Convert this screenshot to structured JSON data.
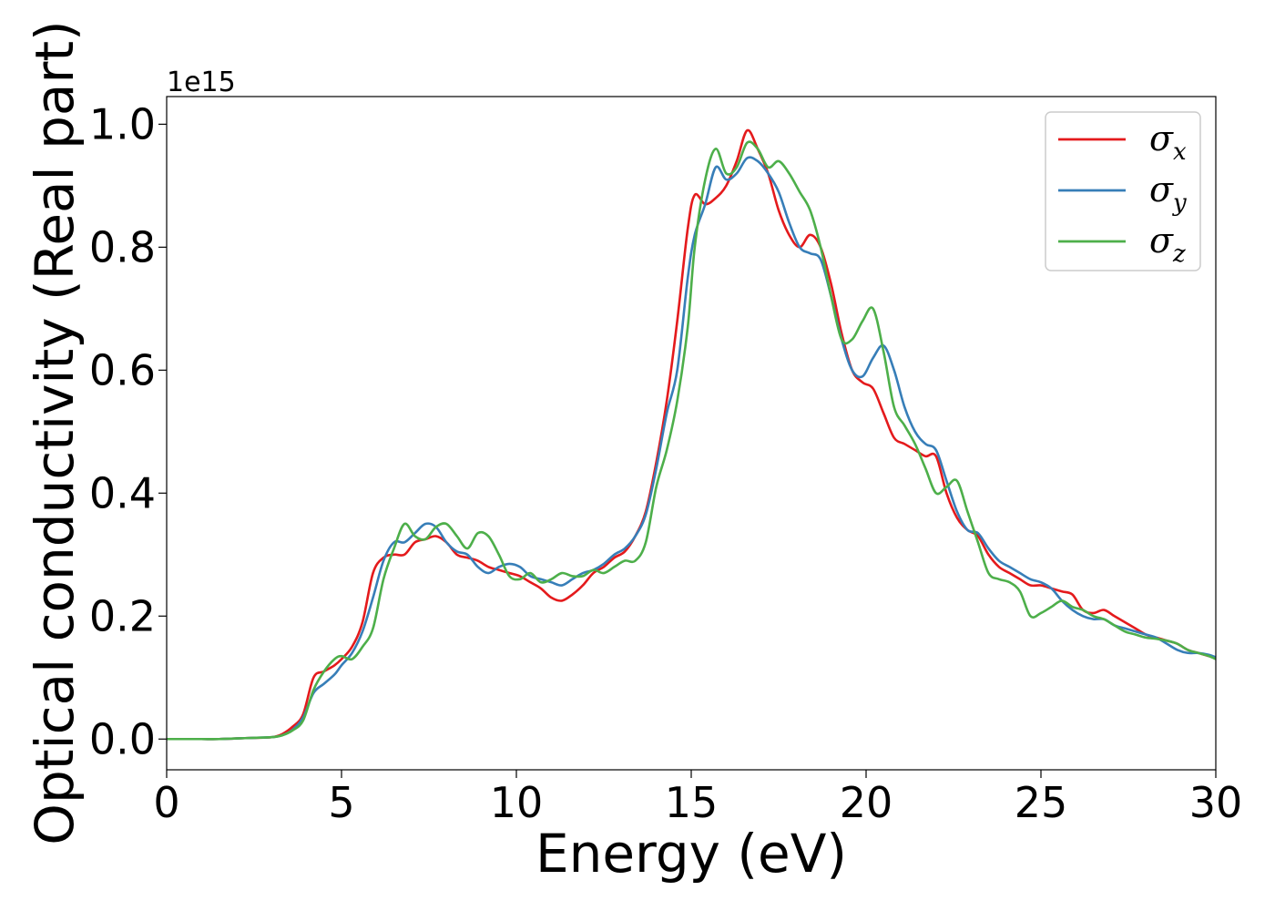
{
  "chart_data": {
    "type": "line",
    "title": "",
    "xlabel": "Energy (eV)",
    "ylabel": "Optical conductivity (Real part)",
    "y_offset_label": "1e15",
    "xlim": [
      0,
      30
    ],
    "ylim": [
      -0.05,
      1.045
    ],
    "x_ticks": [
      0,
      5,
      10,
      15,
      20,
      25,
      30
    ],
    "x_tick_labels": [
      "0",
      "5",
      "10",
      "15",
      "20",
      "25",
      "30"
    ],
    "y_ticks": [
      0.0,
      0.2,
      0.4,
      0.6,
      0.8,
      1.0
    ],
    "y_tick_labels": [
      "0.0",
      "0.2",
      "0.4",
      "0.6",
      "0.8",
      "1.0"
    ],
    "grid": false,
    "legend_position": "top-right",
    "x": [
      0,
      0.5,
      1,
      1.5,
      2,
      2.5,
      3,
      3.3,
      3.6,
      3.9,
      4.2,
      4.5,
      4.8,
      5,
      5.3,
      5.6,
      5.9,
      6.2,
      6.5,
      6.8,
      7.1,
      7.4,
      7.7,
      8,
      8.3,
      8.6,
      8.9,
      9.2,
      9.5,
      9.8,
      10.1,
      10.4,
      10.7,
      11,
      11.3,
      11.6,
      11.9,
      12.2,
      12.5,
      12.8,
      13.1,
      13.4,
      13.7,
      14,
      14.3,
      14.6,
      14.9,
      15.1,
      15.4,
      15.7,
      16,
      16.3,
      16.6,
      16.9,
      17.2,
      17.5,
      17.8,
      18.1,
      18.4,
      18.7,
      19,
      19.3,
      19.6,
      19.9,
      20.2,
      20.5,
      20.8,
      21.1,
      21.4,
      21.7,
      22,
      22.3,
      22.6,
      22.9,
      23.2,
      23.5,
      23.8,
      24.1,
      24.4,
      24.7,
      25,
      25.3,
      25.6,
      25.9,
      26.2,
      26.5,
      26.8,
      27.1,
      27.4,
      27.7,
      28,
      28.3,
      28.6,
      28.9,
      29.2,
      29.5,
      29.8,
      30
    ],
    "series": [
      {
        "name": "x",
        "color": "#e41a1c",
        "values": [
          0,
          0,
          0,
          0,
          0.001,
          0.002,
          0.003,
          0.008,
          0.02,
          0.04,
          0.1,
          0.11,
          0.12,
          0.13,
          0.15,
          0.19,
          0.27,
          0.295,
          0.3,
          0.3,
          0.32,
          0.325,
          0.33,
          0.32,
          0.3,
          0.295,
          0.29,
          0.28,
          0.275,
          0.27,
          0.265,
          0.255,
          0.245,
          0.23,
          0.225,
          0.235,
          0.25,
          0.27,
          0.28,
          0.295,
          0.305,
          0.33,
          0.37,
          0.45,
          0.55,
          0.68,
          0.83,
          0.885,
          0.87,
          0.88,
          0.9,
          0.94,
          0.99,
          0.96,
          0.92,
          0.86,
          0.82,
          0.8,
          0.82,
          0.8,
          0.74,
          0.66,
          0.6,
          0.58,
          0.57,
          0.53,
          0.49,
          0.48,
          0.47,
          0.46,
          0.46,
          0.4,
          0.36,
          0.34,
          0.33,
          0.3,
          0.28,
          0.27,
          0.26,
          0.25,
          0.25,
          0.245,
          0.24,
          0.235,
          0.21,
          0.205,
          0.21,
          0.2,
          0.19,
          0.18,
          0.17,
          0.165,
          0.16,
          0.155,
          0.145,
          0.14,
          0.135,
          0.132
        ]
      },
      {
        "name": "y",
        "color": "#377eb8",
        "values": [
          0,
          0,
          0,
          0,
          0.001,
          0.002,
          0.003,
          0.006,
          0.015,
          0.035,
          0.075,
          0.09,
          0.105,
          0.12,
          0.14,
          0.175,
          0.23,
          0.29,
          0.32,
          0.32,
          0.335,
          0.35,
          0.345,
          0.32,
          0.305,
          0.3,
          0.28,
          0.27,
          0.28,
          0.285,
          0.28,
          0.265,
          0.26,
          0.255,
          0.25,
          0.26,
          0.27,
          0.275,
          0.285,
          0.3,
          0.31,
          0.33,
          0.365,
          0.44,
          0.53,
          0.6,
          0.75,
          0.82,
          0.87,
          0.93,
          0.91,
          0.92,
          0.945,
          0.94,
          0.92,
          0.89,
          0.84,
          0.8,
          0.79,
          0.78,
          0.72,
          0.65,
          0.6,
          0.59,
          0.62,
          0.64,
          0.6,
          0.54,
          0.5,
          0.48,
          0.47,
          0.42,
          0.37,
          0.34,
          0.335,
          0.31,
          0.29,
          0.28,
          0.27,
          0.26,
          0.255,
          0.245,
          0.225,
          0.21,
          0.2,
          0.195,
          0.195,
          0.185,
          0.18,
          0.175,
          0.17,
          0.165,
          0.155,
          0.145,
          0.14,
          0.14,
          0.137,
          0.133
        ]
      },
      {
        "name": "z",
        "color": "#4daf4a",
        "values": [
          0,
          0,
          0,
          0,
          0.001,
          0.002,
          0.003,
          0.006,
          0.014,
          0.03,
          0.08,
          0.11,
          0.13,
          0.135,
          0.13,
          0.15,
          0.18,
          0.26,
          0.31,
          0.35,
          0.33,
          0.325,
          0.345,
          0.35,
          0.33,
          0.31,
          0.335,
          0.33,
          0.3,
          0.265,
          0.26,
          0.27,
          0.255,
          0.26,
          0.27,
          0.265,
          0.265,
          0.275,
          0.27,
          0.28,
          0.29,
          0.29,
          0.32,
          0.41,
          0.47,
          0.55,
          0.67,
          0.8,
          0.91,
          0.96,
          0.92,
          0.93,
          0.97,
          0.96,
          0.93,
          0.94,
          0.92,
          0.89,
          0.86,
          0.8,
          0.72,
          0.65,
          0.65,
          0.68,
          0.7,
          0.63,
          0.54,
          0.51,
          0.48,
          0.44,
          0.4,
          0.41,
          0.42,
          0.37,
          0.32,
          0.27,
          0.26,
          0.255,
          0.24,
          0.2,
          0.205,
          0.215,
          0.225,
          0.215,
          0.21,
          0.2,
          0.195,
          0.185,
          0.175,
          0.17,
          0.165,
          0.163,
          0.16,
          0.155,
          0.145,
          0.14,
          0.135,
          0.13
        ]
      }
    ]
  }
}
